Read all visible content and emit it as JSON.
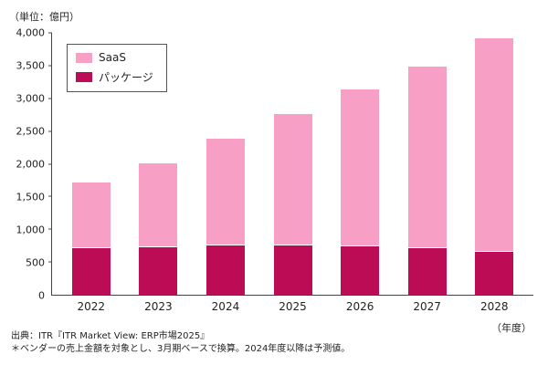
{
  "unit_label": "（単位：億円）",
  "year_axis_label": "（年度）",
  "footnotes": [
    "出典：ITR『ITR Market View: ERP市場2025』",
    "＊ベンダーの売上金額を対象とし、3月期ベースで換算。2024年度以降は予測値。"
  ],
  "legend": {
    "saas_label": "SaaS",
    "package_label": "パッケージ"
  },
  "chart_data": {
    "type": "bar",
    "stacked": true,
    "title": "",
    "xlabel": "年度",
    "ylabel": "億円",
    "categories": [
      "2022",
      "2023",
      "2024",
      "2025",
      "2026",
      "2027",
      "2028"
    ],
    "series": [
      {
        "name": "SaaS",
        "color": "#F79FC5",
        "values": [
          1000,
          1270,
          1620,
          1990,
          2380,
          2770,
          3250
        ]
      },
      {
        "name": "パッケージ",
        "color": "#BC0C56",
        "values": [
          720,
          740,
          760,
          770,
          750,
          720,
          670
        ]
      }
    ],
    "totals": [
      1720,
      2010,
      2380,
      2760,
      3130,
      3490,
      3920
    ],
    "ylim": [
      0,
      4000
    ],
    "yticks": [
      0,
      500,
      1000,
      1500,
      2000,
      2500,
      3000,
      3500,
      4000
    ],
    "grid": false,
    "legend_position": "top-left"
  }
}
